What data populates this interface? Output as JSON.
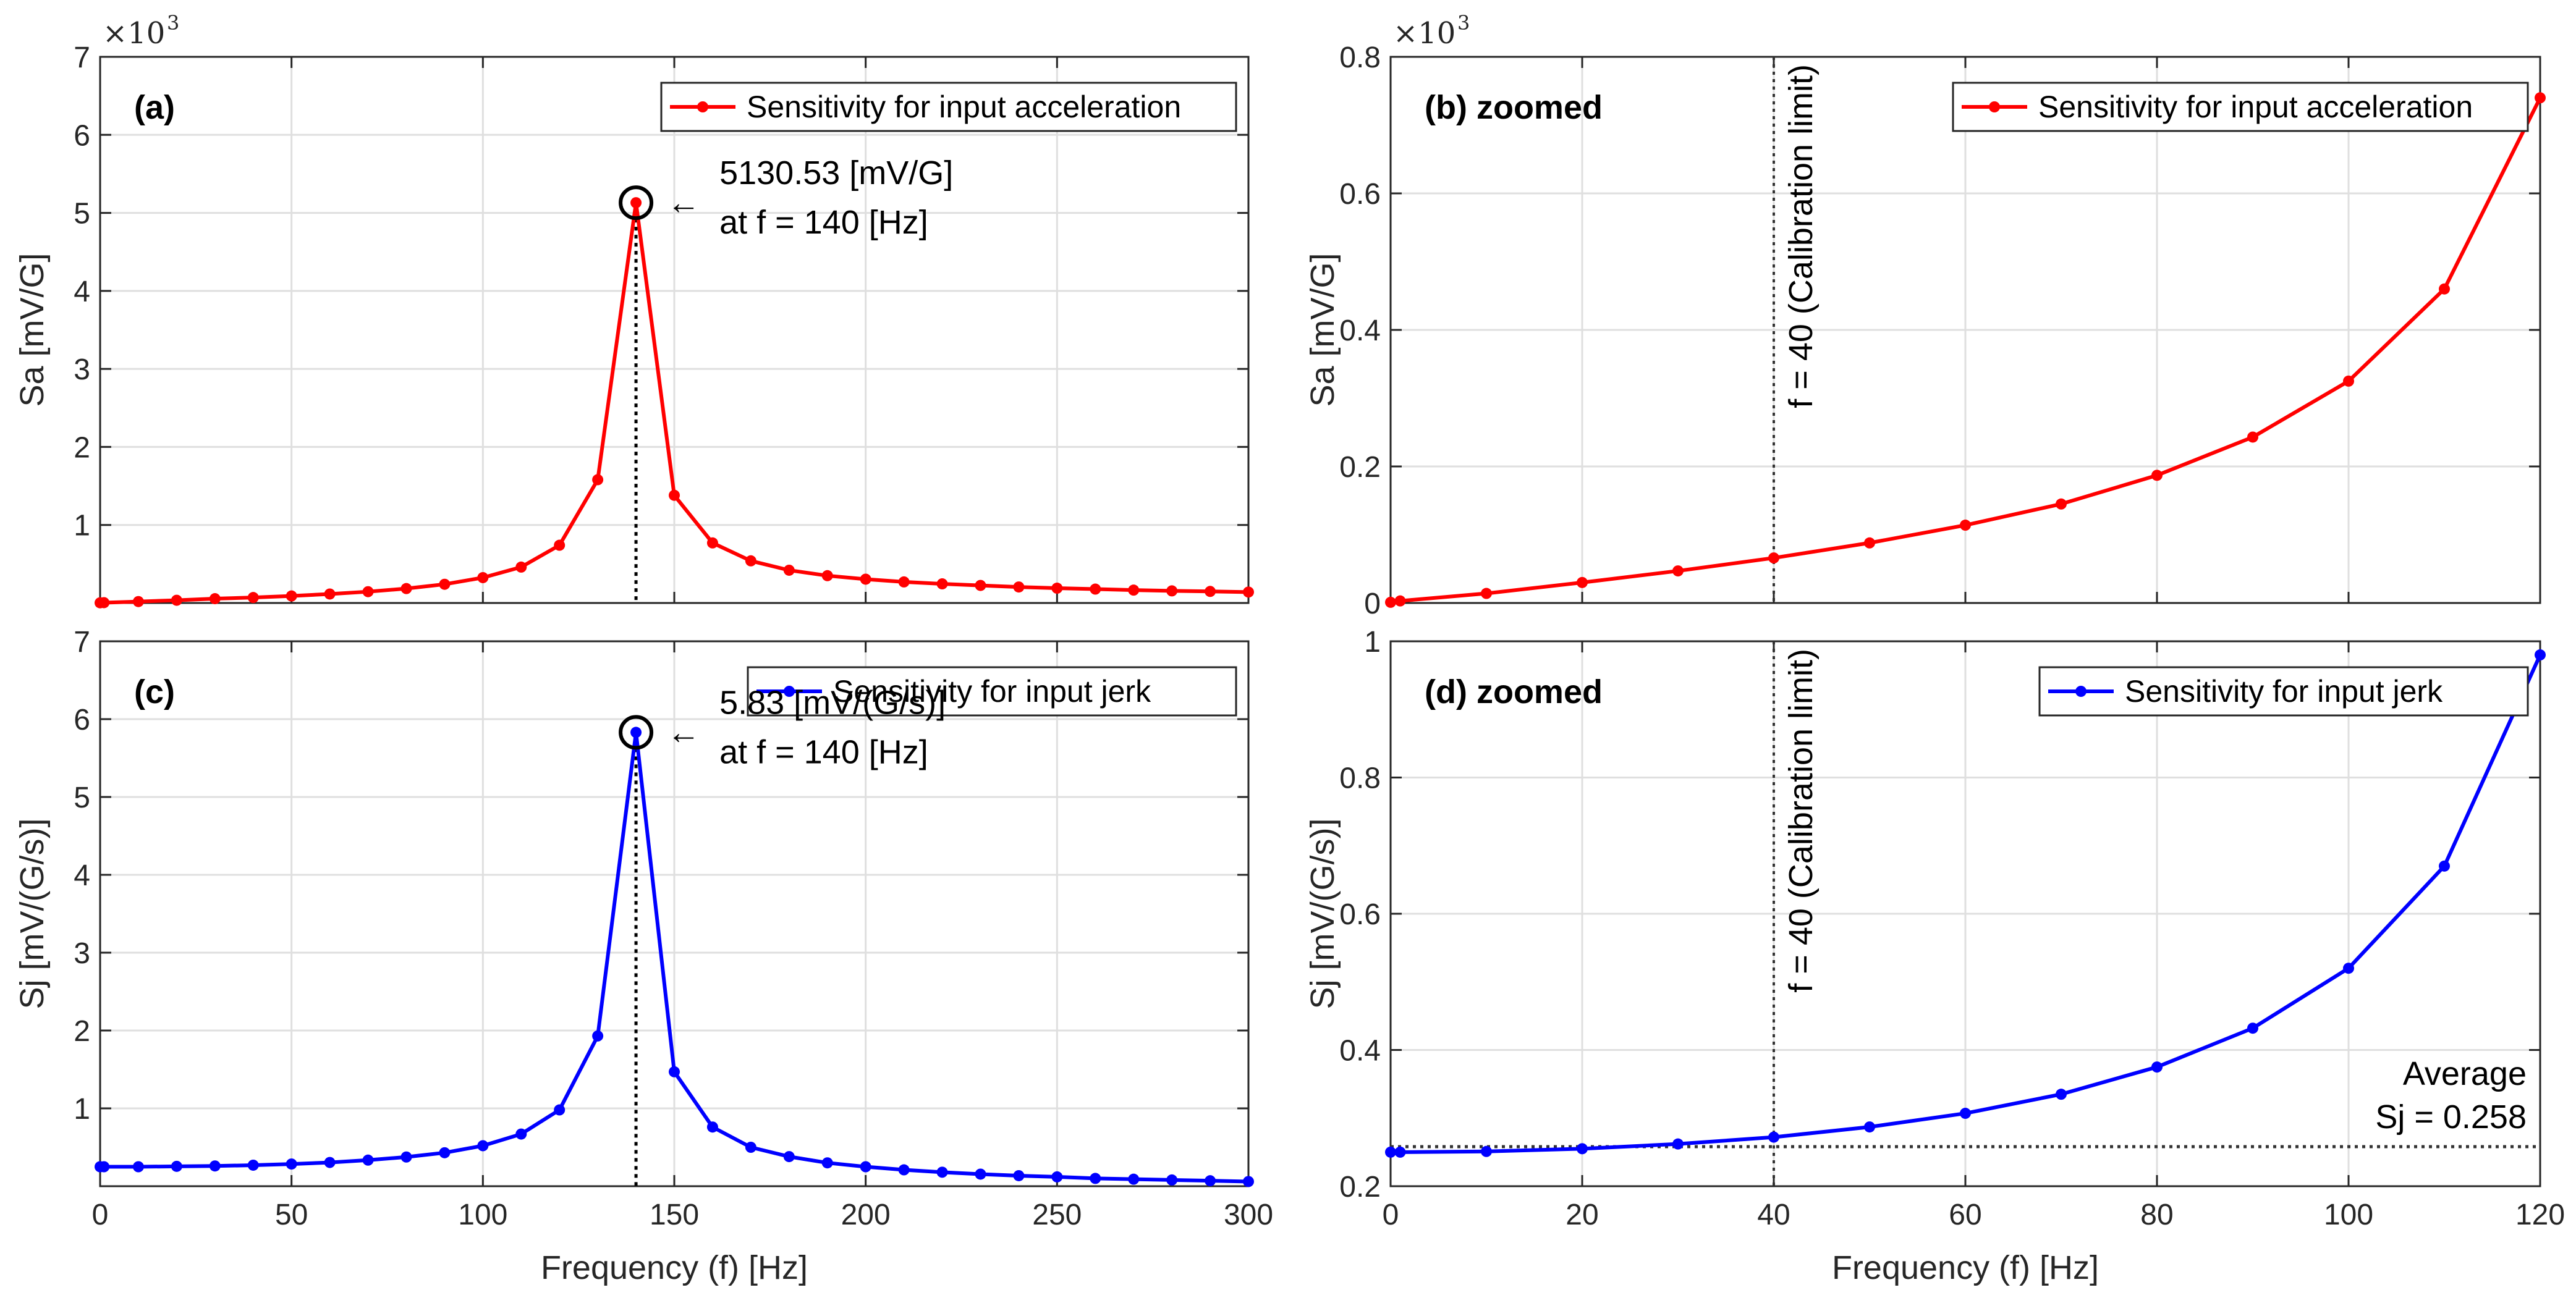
{
  "chart_data": [
    {
      "id": "a",
      "type": "line",
      "panel_label": "(a)",
      "title": "",
      "xlabel": "",
      "ylabel": "Sa [mV/G]",
      "exponent_label": "×10",
      "exponent_power": "3",
      "scale": 1000,
      "xlim": [
        0,
        300
      ],
      "ylim": [
        0,
        7000
      ],
      "xticks": [
        0,
        50,
        100,
        150,
        200,
        250,
        300
      ],
      "yticks": [
        1000,
        2000,
        3000,
        4000,
        5000,
        6000,
        7000
      ],
      "show_x_tick_labels": false,
      "grid": true,
      "legend_position": "top-right",
      "series": [
        {
          "name": "Sensitivity for input acceleration",
          "color": "#ff0000",
          "x": [
            0,
            1,
            10,
            20,
            30,
            40,
            50,
            60,
            70,
            80,
            90,
            100,
            110,
            120,
            130,
            140,
            150,
            160,
            170,
            180,
            190,
            200,
            210,
            220,
            230,
            240,
            250,
            260,
            270,
            280,
            290,
            300
          ],
          "values": [
            2,
            4,
            18,
            35,
            55,
            70,
            90,
            115,
            145,
            185,
            240,
            325,
            460,
            740,
            1580,
            5130.53,
            1380,
            770,
            540,
            420,
            350,
            305,
            270,
            245,
            225,
            205,
            190,
            178,
            165,
            155,
            148,
            140
          ]
        }
      ],
      "peak": {
        "x": 140,
        "y": 5130.53
      },
      "annotation_arrow": "←",
      "annotation_lines": [
        "5130.53 [mV/G]",
        "at f = 140 [Hz]"
      ],
      "vline_x": 140
    },
    {
      "id": "b",
      "type": "line",
      "panel_label": "(b) zoomed",
      "title": "",
      "xlabel": "",
      "ylabel": "Sa [mV/G]",
      "exponent_label": "×10",
      "exponent_power": "3",
      "scale": 1000,
      "xlim": [
        0,
        120
      ],
      "ylim": [
        0,
        800
      ],
      "xticks": [
        0,
        20,
        40,
        60,
        80,
        100,
        120
      ],
      "yticks": [
        0,
        200,
        400,
        600,
        800
      ],
      "show_x_tick_labels": false,
      "grid": true,
      "legend_position": "top-right",
      "series": [
        {
          "name": "Sensitivity for input acceleration",
          "color": "#ff0000",
          "x": [
            0,
            1,
            10,
            20,
            30,
            40,
            50,
            60,
            70,
            80,
            90,
            100,
            110,
            120
          ],
          "values": [
            1,
            3,
            14,
            30,
            47,
            66,
            88,
            114,
            145,
            187,
            243,
            325,
            460,
            740
          ]
        }
      ],
      "vline_x": 40,
      "vline_label": "f = 40 (Calibration limit)"
    },
    {
      "id": "c",
      "type": "line",
      "panel_label": "(c)",
      "title": "",
      "xlabel": "Frequency (f) [Hz]",
      "ylabel": "Sj [mV/(G/s)]",
      "scale": 1,
      "xlim": [
        0,
        300
      ],
      "ylim": [
        0,
        7
      ],
      "xticks": [
        0,
        50,
        100,
        150,
        200,
        250,
        300
      ],
      "yticks": [
        1,
        2,
        3,
        4,
        5,
        6,
        7
      ],
      "show_x_tick_labels": true,
      "grid": true,
      "legend_position": "top-right",
      "series": [
        {
          "name": "Sensitivity for input jerk",
          "color": "#0000ff",
          "x": [
            0,
            1,
            10,
            20,
            30,
            40,
            50,
            60,
            70,
            80,
            90,
            100,
            110,
            120,
            130,
            140,
            150,
            160,
            170,
            180,
            190,
            200,
            210,
            220,
            230,
            240,
            250,
            260,
            270,
            280,
            290,
            300
          ],
          "values": [
            0.25,
            0.25,
            0.25,
            0.255,
            0.26,
            0.27,
            0.285,
            0.305,
            0.335,
            0.375,
            0.43,
            0.52,
            0.67,
            0.98,
            1.93,
            5.83,
            1.47,
            0.76,
            0.5,
            0.38,
            0.3,
            0.25,
            0.21,
            0.18,
            0.155,
            0.135,
            0.12,
            0.1,
            0.09,
            0.08,
            0.07,
            0.06
          ]
        }
      ],
      "peak": {
        "x": 140,
        "y": 5.83
      },
      "annotation_arrow": "←",
      "annotation_lines": [
        "5.83 [mV/(G/s)]",
        "at f = 140 [Hz]"
      ],
      "vline_x": 140
    },
    {
      "id": "d",
      "type": "line",
      "panel_label": "(d) zoomed",
      "title": "",
      "xlabel": "Frequency (f) [Hz]",
      "ylabel": "Sj [mV/(G/s)]",
      "scale": 1,
      "xlim": [
        0,
        120
      ],
      "ylim": [
        0.2,
        1
      ],
      "xticks": [
        0,
        20,
        40,
        60,
        80,
        100,
        120
      ],
      "yticks": [
        0.2,
        0.4,
        0.6,
        0.8,
        1
      ],
      "show_x_tick_labels": true,
      "grid": true,
      "legend_position": "top-right",
      "series": [
        {
          "name": "Sensitivity for input jerk",
          "color": "#0000ff",
          "x": [
            0,
            1,
            10,
            20,
            30,
            40,
            50,
            60,
            70,
            80,
            90,
            100,
            110,
            120
          ],
          "values": [
            0.25,
            0.25,
            0.251,
            0.255,
            0.262,
            0.272,
            0.287,
            0.307,
            0.335,
            0.375,
            0.432,
            0.52,
            0.67,
            0.98
          ]
        }
      ],
      "vline_x": 40,
      "vline_label": "f = 40 (Calibration limit)",
      "hline_y": 0.258,
      "hline_label_lines": [
        "Average",
        "Sj = 0.258"
      ]
    }
  ]
}
